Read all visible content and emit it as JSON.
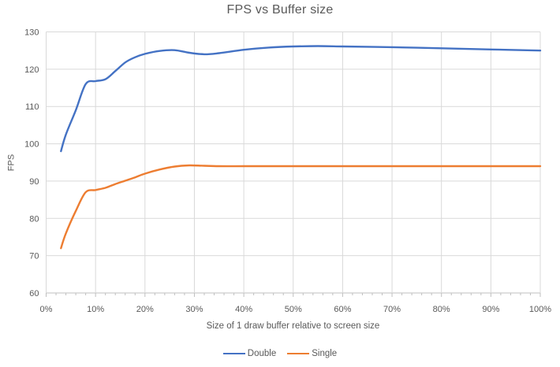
{
  "chart": {
    "title": "FPS vs Buffer size",
    "colors": {
      "gridline": "#D9D9D9",
      "axis_line": "#BFBFBF",
      "tick": "#BFBFBF",
      "text": "#595959"
    }
  },
  "chart_data": {
    "type": "line",
    "title": "FPS vs Buffer size",
    "xlabel": "Size of 1 draw buffer relative to screen size",
    "ylabel": "FPS",
    "xlim": [
      0,
      100
    ],
    "ylim": [
      60,
      130
    ],
    "x_tick_step": 10,
    "x_minor_tick_step": 2,
    "y_tick_step": 10,
    "x_tick_suffix": "%",
    "grid": true,
    "smoothed": true,
    "legend_position": "bottom",
    "x": [
      3,
      4,
      6,
      8,
      10,
      12,
      14,
      16,
      18,
      20,
      23,
      26,
      29,
      32,
      35,
      40,
      45,
      50,
      55,
      60,
      70,
      80,
      90,
      100
    ],
    "series": [
      {
        "name": "Double",
        "color": "#4472C4",
        "values": [
          98,
          102.5,
          109,
          116,
          116.8,
          117.3,
          119.5,
          121.8,
          123.2,
          124.1,
          124.9,
          125.1,
          124.4,
          124,
          124.3,
          125.2,
          125.8,
          126.1,
          126.2,
          126.1,
          125.9,
          125.6,
          125.3,
          125
        ]
      },
      {
        "name": "Single",
        "color": "#ED7D31",
        "values": [
          72,
          76,
          82,
          87,
          87.6,
          88.2,
          89.2,
          90.1,
          91,
          92,
          93.1,
          93.9,
          94.2,
          94.1,
          94,
          94,
          94,
          94,
          94,
          94,
          94,
          94,
          94,
          94
        ]
      }
    ]
  }
}
